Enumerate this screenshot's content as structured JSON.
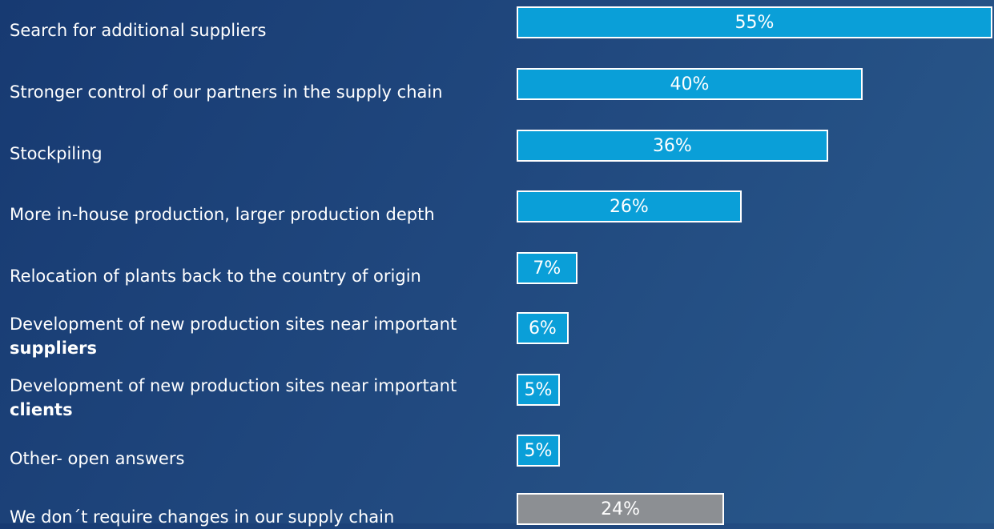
{
  "chart_data": {
    "type": "bar",
    "orientation": "horizontal",
    "categories": [
      "Search for additional suppliers",
      "Stronger control of our partners in the supply chain",
      "Stockpiling",
      "More in-house production, larger production depth",
      "Relocation of plants back to the country of origin",
      [
        {
          "text": "Development of new production sites near important "
        },
        {
          "text": "suppliers",
          "bold": true
        }
      ],
      [
        {
          "text": "Development of new production sites near important "
        },
        {
          "text": "clients",
          "bold": true
        }
      ],
      "Other- open answers",
      "We don´t require changes in our supply chain"
    ],
    "values": [
      55,
      40,
      36,
      26,
      7,
      6,
      5,
      5,
      24
    ],
    "value_labels": [
      "55%",
      "40%",
      "36%",
      "26%",
      "7%",
      "6%",
      "5%",
      "5%",
      "24%"
    ],
    "colors": [
      "#0a9fd8",
      "#0a9fd8",
      "#0a9fd8",
      "#0a9fd8",
      "#0a9fd8",
      "#0a9fd8",
      "#0a9fd8",
      "#0a9fd8",
      "#8c8f93"
    ]
  }
}
